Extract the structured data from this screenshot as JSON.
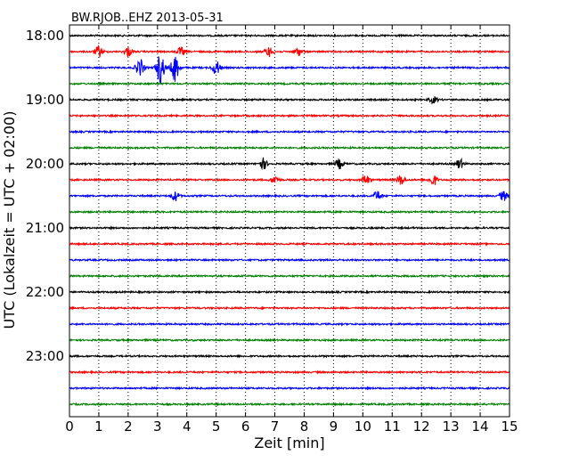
{
  "chart_data": {
    "type": "line",
    "title": "BW.RJOB..EHZ 2013-05-31",
    "xlabel": "Zeit  [min]",
    "ylabel": "UTC (Lokalzeit = UTC + 02:00)",
    "xlim": [
      0,
      15
    ],
    "x_ticks": [
      0,
      1,
      2,
      3,
      4,
      5,
      6,
      7,
      8,
      9,
      10,
      11,
      12,
      13,
      14,
      15
    ],
    "x_tick_labels": [
      "0",
      "1",
      "2",
      "3",
      "4",
      "5",
      "6",
      "7",
      "8",
      "9",
      "10",
      "11",
      "12",
      "13",
      "14",
      "15"
    ],
    "y_tick_labels": [
      "18:00",
      "19:00",
      "20:00",
      "21:00",
      "22:00",
      "23:00"
    ],
    "grid": "vertical dotted",
    "trace_colors": [
      "#000000",
      "#ff0000",
      "#0000ff",
      "#008000"
    ],
    "series": [
      {
        "start": "18:00",
        "color": "#000000",
        "events": []
      },
      {
        "start": "18:15",
        "color": "#ff0000",
        "events": [
          [
            1.0,
            0.35
          ],
          [
            2.0,
            0.3
          ],
          [
            3.8,
            0.25
          ],
          [
            6.8,
            0.3
          ],
          [
            7.8,
            0.25
          ]
        ]
      },
      {
        "start": "18:30",
        "color": "#0000ff",
        "events": [
          [
            2.4,
            0.55
          ],
          [
            3.1,
            1.0
          ],
          [
            3.6,
            0.9
          ],
          [
            5.0,
            0.45
          ]
        ]
      },
      {
        "start": "18:45",
        "color": "#008000",
        "events": []
      },
      {
        "start": "19:00",
        "color": "#000000",
        "events": [
          [
            12.4,
            0.2
          ]
        ]
      },
      {
        "start": "19:15",
        "color": "#ff0000",
        "events": []
      },
      {
        "start": "19:30",
        "color": "#0000ff",
        "events": []
      },
      {
        "start": "19:45",
        "color": "#008000",
        "events": []
      },
      {
        "start": "20:00",
        "color": "#000000",
        "events": [
          [
            6.6,
            0.35
          ],
          [
            9.2,
            0.3
          ],
          [
            13.3,
            0.3
          ]
        ]
      },
      {
        "start": "20:15",
        "color": "#ff0000",
        "events": [
          [
            7.0,
            0.25
          ],
          [
            10.1,
            0.3
          ],
          [
            11.3,
            0.3
          ],
          [
            12.4,
            0.35
          ]
        ]
      },
      {
        "start": "20:30",
        "color": "#0000ff",
        "events": [
          [
            3.6,
            0.3
          ],
          [
            10.5,
            0.3
          ],
          [
            14.8,
            0.3
          ]
        ]
      },
      {
        "start": "20:45",
        "color": "#008000",
        "events": []
      },
      {
        "start": "21:00",
        "color": "#000000",
        "events": []
      },
      {
        "start": "21:15",
        "color": "#ff0000",
        "events": []
      },
      {
        "start": "21:30",
        "color": "#0000ff",
        "events": []
      },
      {
        "start": "21:45",
        "color": "#008000",
        "events": []
      },
      {
        "start": "22:00",
        "color": "#000000",
        "events": []
      },
      {
        "start": "22:15",
        "color": "#ff0000",
        "events": []
      },
      {
        "start": "22:30",
        "color": "#0000ff",
        "events": []
      },
      {
        "start": "22:45",
        "color": "#008000",
        "events": []
      },
      {
        "start": "23:00",
        "color": "#000000",
        "events": []
      },
      {
        "start": "23:15",
        "color": "#ff0000",
        "events": []
      },
      {
        "start": "23:30",
        "color": "#0000ff",
        "events": []
      },
      {
        "start": "23:45",
        "color": "#008000",
        "events": []
      }
    ]
  }
}
